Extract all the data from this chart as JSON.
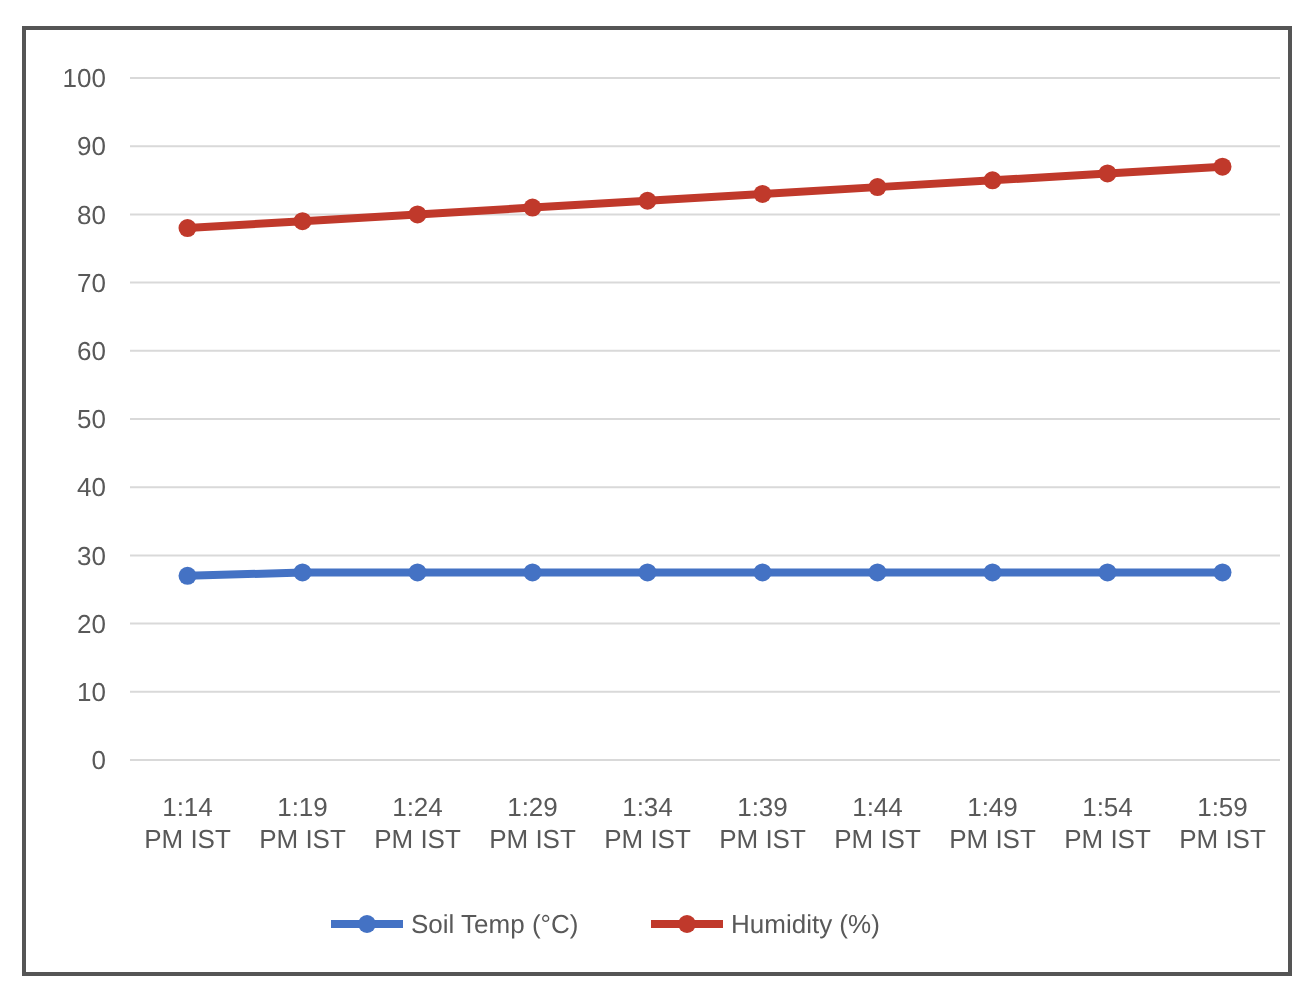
{
  "chart_data": {
    "type": "line",
    "categories": [
      "1:14 PM IST",
      "1:19 PM IST",
      "1:24 PM IST",
      "1:29 PM IST",
      "1:34 PM IST",
      "1:39 PM IST",
      "1:44 PM IST",
      "1:49 PM IST",
      "1:54 PM IST",
      "1:59 PM IST"
    ],
    "series": [
      {
        "name": "Soil Temp (°C)",
        "color": "#4472c4",
        "values": [
          27,
          27.5,
          27.5,
          27.5,
          27.5,
          27.5,
          27.5,
          27.5,
          27.5,
          27.5
        ]
      },
      {
        "name": "Humidity (%)",
        "color": "#c0392b",
        "values": [
          78,
          79,
          80,
          81,
          82,
          83,
          84,
          85,
          86,
          87
        ]
      }
    ],
    "ylim": [
      0,
      100
    ],
    "yticks": [
      0,
      10,
      20,
      30,
      40,
      50,
      60,
      70,
      80,
      90,
      100
    ],
    "grid": "y",
    "legend": "bottom",
    "marker": "circle",
    "line_style": "solid"
  }
}
